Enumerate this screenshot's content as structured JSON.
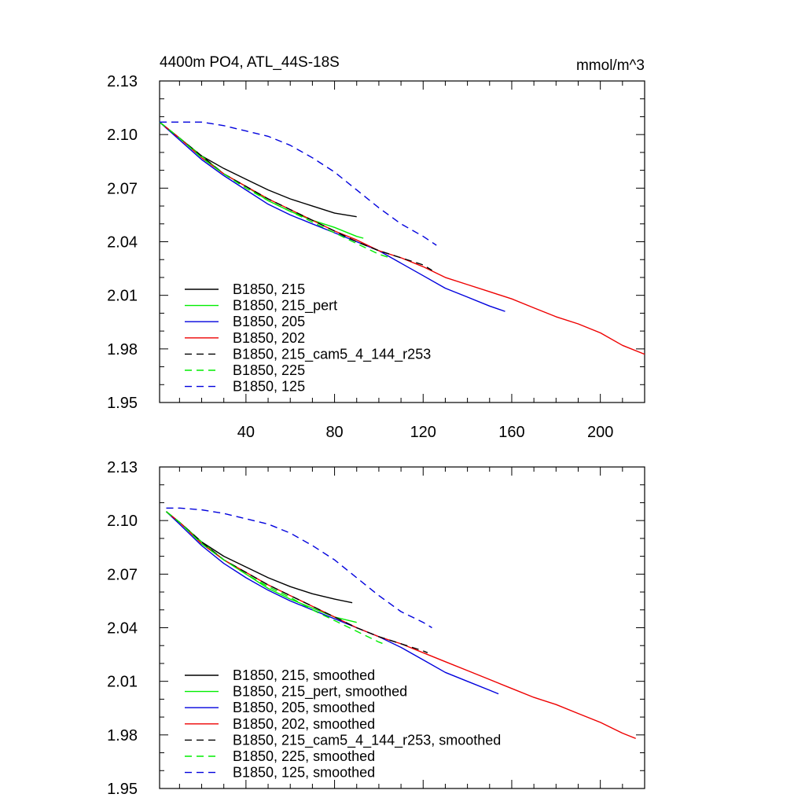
{
  "chart_data": [
    {
      "type": "line",
      "title": "4400m PO4, ATL_44S-18S",
      "units": "mmol/m^3",
      "xlabel": "",
      "ylabel": "",
      "xlim": [
        1,
        220
      ],
      "ylim": [
        1.95,
        2.13
      ],
      "x_ticks": [
        "40",
        "80",
        "120",
        "160",
        "200"
      ],
      "y_ticks": [
        "2.13",
        "2.10",
        "2.07",
        "2.04",
        "2.01",
        "1.98",
        "1.95"
      ],
      "legend_position": "bottom-left",
      "series": [
        {
          "name": "B1850, 215",
          "color": "#000000",
          "dash": "solid",
          "x": [
            1,
            10,
            20,
            30,
            40,
            50,
            60,
            70,
            80,
            90
          ],
          "y": [
            2.107,
            2.098,
            2.088,
            2.081,
            2.075,
            2.069,
            2.064,
            2.06,
            2.056,
            2.054
          ]
        },
        {
          "name": "B1850, 215_pert",
          "color": "#00ee00",
          "dash": "solid",
          "x": [
            1,
            10,
            20,
            30,
            40,
            50,
            60,
            70,
            80,
            90,
            93
          ],
          "y": [
            2.107,
            2.098,
            2.088,
            2.078,
            2.071,
            2.063,
            2.057,
            2.052,
            2.048,
            2.043,
            2.042
          ]
        },
        {
          "name": "B1850, 205",
          "color": "#0000dd",
          "dash": "solid",
          "x": [
            1,
            10,
            20,
            30,
            40,
            50,
            60,
            70,
            80,
            90,
            100,
            110,
            120,
            130,
            140,
            150,
            157
          ],
          "y": [
            2.107,
            2.097,
            2.086,
            2.077,
            2.069,
            2.061,
            2.055,
            2.05,
            2.045,
            2.04,
            2.035,
            2.028,
            2.021,
            2.014,
            2.009,
            2.004,
            2.001
          ]
        },
        {
          "name": "B1850, 202",
          "color": "#ee0000",
          "dash": "solid",
          "x": [
            1,
            10,
            20,
            30,
            40,
            50,
            60,
            70,
            80,
            90,
            100,
            110,
            120,
            130,
            140,
            150,
            160,
            170,
            180,
            190,
            200,
            210,
            220
          ],
          "y": [
            2.107,
            2.098,
            2.087,
            2.078,
            2.071,
            2.064,
            2.058,
            2.052,
            2.046,
            2.041,
            2.035,
            2.031,
            2.026,
            2.02,
            2.016,
            2.012,
            2.008,
            2.003,
            1.998,
            1.994,
            1.989,
            1.982,
            1.977
          ]
        },
        {
          "name": "B1850, 215_cam5_4_144_r253",
          "color": "#000000",
          "dash": "dashed",
          "x": [
            1,
            10,
            20,
            30,
            40,
            50,
            60,
            70,
            80,
            90,
            100,
            110,
            120,
            124
          ],
          "y": [
            2.107,
            2.098,
            2.088,
            2.078,
            2.071,
            2.064,
            2.058,
            2.052,
            2.046,
            2.04,
            2.035,
            2.031,
            2.027,
            2.024
          ]
        },
        {
          "name": "B1850, 225",
          "color": "#00ee00",
          "dash": "dashed",
          "x": [
            1,
            10,
            20,
            30,
            40,
            50,
            60,
            70,
            80,
            90,
            100,
            105
          ],
          "y": [
            2.107,
            2.098,
            2.087,
            2.078,
            2.07,
            2.063,
            2.057,
            2.051,
            2.045,
            2.039,
            2.033,
            2.031
          ]
        },
        {
          "name": "B1850, 125",
          "color": "#0000dd",
          "dash": "dashed",
          "x": [
            1,
            10,
            20,
            30,
            40,
            50,
            60,
            70,
            80,
            90,
            100,
            110,
            120,
            126
          ],
          "y": [
            2.107,
            2.107,
            2.107,
            2.105,
            2.102,
            2.099,
            2.094,
            2.087,
            2.079,
            2.069,
            2.059,
            2.05,
            2.043,
            2.038
          ]
        }
      ]
    },
    {
      "type": "line",
      "title": "",
      "xlabel": "",
      "ylabel": "",
      "xlim": [
        1,
        220
      ],
      "ylim": [
        1.95,
        2.13
      ],
      "y_ticks": [
        "2.13",
        "2.10",
        "2.07",
        "2.04",
        "2.01",
        "1.98",
        "1.95"
      ],
      "legend_position": "bottom-left",
      "series": [
        {
          "name": "B1850, 215, smoothed",
          "color": "#000000",
          "dash": "solid",
          "x": [
            4,
            10,
            20,
            30,
            40,
            50,
            60,
            70,
            80,
            88
          ],
          "y": [
            2.105,
            2.099,
            2.088,
            2.08,
            2.074,
            2.068,
            2.063,
            2.059,
            2.056,
            2.054
          ]
        },
        {
          "name": "B1850, 215_pert, smoothed",
          "color": "#00ee00",
          "dash": "solid",
          "x": [
            4,
            10,
            20,
            30,
            40,
            50,
            60,
            70,
            80,
            90
          ],
          "y": [
            2.105,
            2.099,
            2.088,
            2.078,
            2.07,
            2.062,
            2.056,
            2.051,
            2.046,
            2.043
          ]
        },
        {
          "name": "B1850, 205, smoothed",
          "color": "#0000dd",
          "dash": "solid",
          "x": [
            4,
            10,
            20,
            30,
            40,
            50,
            60,
            70,
            80,
            90,
            100,
            110,
            120,
            130,
            140,
            150,
            154
          ],
          "y": [
            2.105,
            2.098,
            2.086,
            2.076,
            2.068,
            2.061,
            2.055,
            2.05,
            2.045,
            2.04,
            2.035,
            2.029,
            2.022,
            2.015,
            2.01,
            2.005,
            2.003
          ]
        },
        {
          "name": "B1850, 202, smoothed",
          "color": "#ee0000",
          "dash": "solid",
          "x": [
            4,
            10,
            20,
            30,
            40,
            50,
            60,
            70,
            80,
            90,
            100,
            110,
            120,
            130,
            140,
            150,
            160,
            170,
            180,
            190,
            200,
            210,
            216
          ],
          "y": [
            2.105,
            2.099,
            2.087,
            2.078,
            2.071,
            2.064,
            2.058,
            2.052,
            2.046,
            2.04,
            2.035,
            2.031,
            2.026,
            2.021,
            2.016,
            2.011,
            2.006,
            2.001,
            1.997,
            1.992,
            1.987,
            1.981,
            1.978
          ]
        },
        {
          "name": "B1850, 215_cam5_4_144_r253, smoothed",
          "color": "#000000",
          "dash": "dashed",
          "x": [
            4,
            10,
            20,
            30,
            40,
            50,
            60,
            70,
            80,
            90,
            100,
            110,
            120,
            122
          ],
          "y": [
            2.105,
            2.099,
            2.088,
            2.078,
            2.071,
            2.064,
            2.058,
            2.052,
            2.046,
            2.04,
            2.035,
            2.031,
            2.027,
            2.026
          ]
        },
        {
          "name": "B1850, 225, smoothed",
          "color": "#00ee00",
          "dash": "dashed",
          "x": [
            4,
            10,
            20,
            30,
            40,
            50,
            60,
            70,
            80,
            90,
            100,
            102
          ],
          "y": [
            2.105,
            2.099,
            2.087,
            2.078,
            2.07,
            2.063,
            2.057,
            2.05,
            2.044,
            2.038,
            2.032,
            2.031
          ]
        },
        {
          "name": "B1850, 125, smoothed",
          "color": "#0000dd",
          "dash": "dashed",
          "x": [
            4,
            10,
            20,
            30,
            40,
            50,
            60,
            70,
            80,
            90,
            100,
            110,
            120,
            124
          ],
          "y": [
            2.107,
            2.107,
            2.106,
            2.104,
            2.101,
            2.098,
            2.093,
            2.086,
            2.078,
            2.068,
            2.058,
            2.049,
            2.043,
            2.04
          ]
        }
      ]
    }
  ]
}
